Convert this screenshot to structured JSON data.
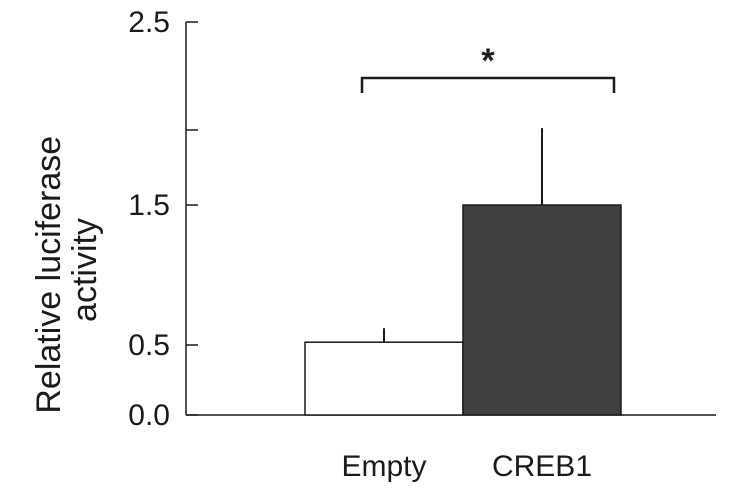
{
  "chart_data": {
    "type": "bar",
    "categories": [
      "Empty",
      "CREB1"
    ],
    "values": [
      0.52,
      1.5
    ],
    "errors": [
      0.1,
      0.42
    ],
    "bar_colors": [
      "#ffffff",
      "#404040"
    ],
    "edge_color": "#1a1a1a",
    "ylabel_lines": [
      "Relative luciferase",
      "activity"
    ],
    "title": "",
    "xlabel": "",
    "yticks": [
      0.0,
      0.5,
      1.5,
      2.5
    ],
    "ytick_labels": [
      "0.0",
      "0.5",
      "1.5",
      "2.5"
    ],
    "significance": {
      "label": "*",
      "between": [
        "Empty",
        "CREB1"
      ]
    }
  }
}
